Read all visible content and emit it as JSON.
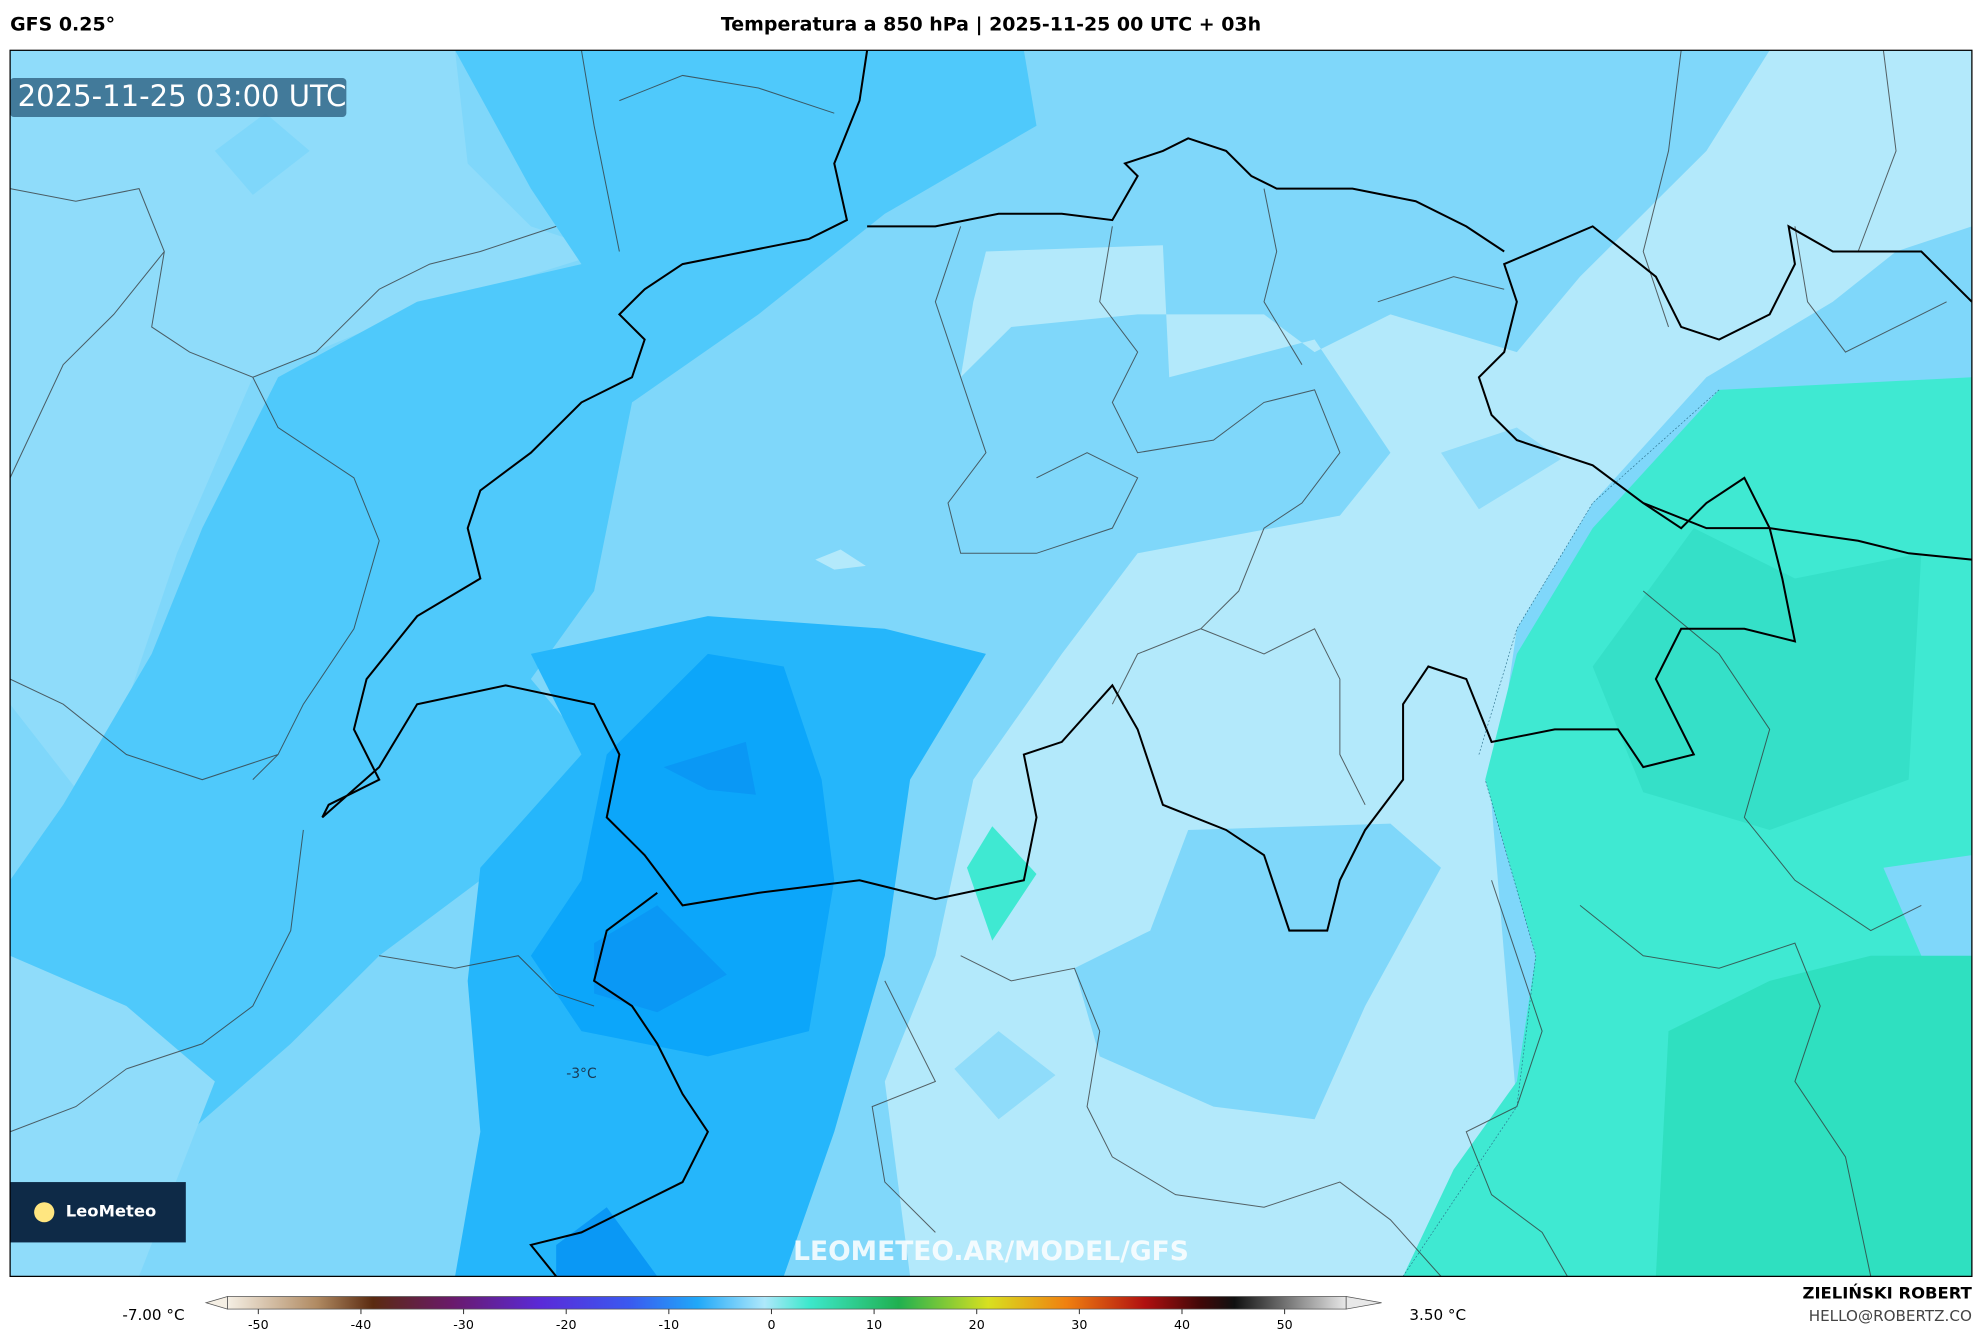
{
  "header": {
    "model": "GFS 0.25°",
    "title": "Temperatura a 850 hPa | 2025-11-25 00 UTC + 03h"
  },
  "map": {
    "timestamp": "2025-11-25 03:00 UTC",
    "point_label": "-3°C",
    "logo": "LeoMeteo",
    "watermark": "LEOMETEO.AR/MODEL/GFS"
  },
  "colorbar": {
    "min_label": "-7.00 °C",
    "max_label": "3.50 °C",
    "range": [
      -53,
      56
    ],
    "ticks": [
      -50,
      -40,
      -30,
      -20,
      -10,
      0,
      10,
      20,
      30,
      40,
      50
    ]
  },
  "footer": {
    "author": "ZIELIŃSKI ROBERT",
    "contact": "HELLO@ROBERTZ.CO"
  }
}
